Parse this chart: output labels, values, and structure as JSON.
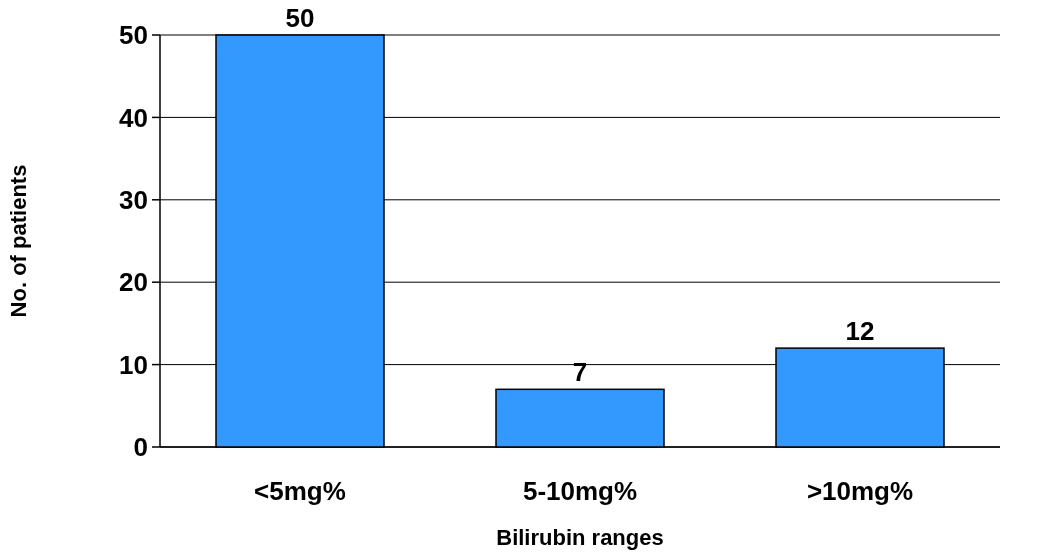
{
  "chart_data": {
    "type": "bar",
    "xlabel": "Bilirubin ranges",
    "ylabel": "No. of patients",
    "categories": [
      "<5mg%",
      "5-10mg%",
      ">10mg%"
    ],
    "values": [
      50,
      7,
      12
    ],
    "color": "#3399ff",
    "ylim": [
      0,
      50
    ],
    "yticks": [
      0,
      10,
      20,
      30,
      40,
      50
    ],
    "grid": "y",
    "data_labels": true
  }
}
